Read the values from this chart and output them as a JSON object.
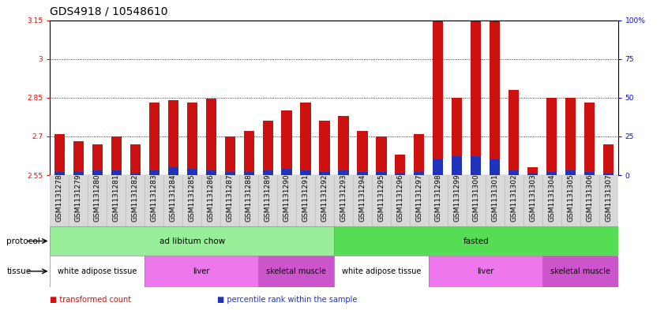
{
  "title": "GDS4918 / 10548610",
  "samples": [
    "GSM1131278",
    "GSM1131279",
    "GSM1131280",
    "GSM1131281",
    "GSM1131282",
    "GSM1131283",
    "GSM1131284",
    "GSM1131285",
    "GSM1131286",
    "GSM1131287",
    "GSM1131288",
    "GSM1131289",
    "GSM1131290",
    "GSM1131291",
    "GSM1131292",
    "GSM1131293",
    "GSM1131294",
    "GSM1131295",
    "GSM1131296",
    "GSM1131297",
    "GSM1131298",
    "GSM1131299",
    "GSM1131300",
    "GSM1131301",
    "GSM1131302",
    "GSM1131303",
    "GSM1131304",
    "GSM1131305",
    "GSM1131306",
    "GSM1131307"
  ],
  "red_values": [
    2.71,
    2.68,
    2.67,
    2.7,
    2.67,
    2.83,
    2.84,
    2.83,
    2.845,
    2.7,
    2.72,
    2.76,
    2.8,
    2.83,
    2.76,
    2.78,
    2.72,
    2.7,
    2.63,
    2.71,
    3.22,
    2.85,
    3.38,
    3.37,
    2.88,
    2.58,
    2.85,
    2.85,
    2.83,
    2.67
  ],
  "blue_values": [
    2,
    2,
    3,
    3,
    1,
    3,
    5,
    4,
    3,
    2,
    2,
    3,
    4,
    3,
    2,
    3,
    2,
    2,
    1,
    2,
    10,
    12,
    12,
    10,
    3,
    1,
    2,
    3,
    2,
    1
  ],
  "ymin": 2.55,
  "ymax": 3.15,
  "yticks": [
    2.55,
    2.7,
    2.85,
    3.0,
    3.15
  ],
  "ytick_labels": [
    "2.55",
    "2.7",
    "2.85",
    "3",
    "3.15"
  ],
  "grid_lines": [
    2.7,
    2.85,
    3.0
  ],
  "right_yticks": [
    0,
    25,
    50,
    75,
    100
  ],
  "right_ytick_labels": [
    "0",
    "25",
    "50",
    "75",
    "100%"
  ],
  "bar_color": "#cc1111",
  "blue_bar_color": "#2233bb",
  "protocol_groups": [
    {
      "label": "ad libitum chow",
      "start": 0,
      "end": 15,
      "color": "#99ee99"
    },
    {
      "label": "fasted",
      "start": 15,
      "end": 30,
      "color": "#55dd55"
    }
  ],
  "tissue_groups": [
    {
      "label": "white adipose tissue",
      "start": 0,
      "end": 5,
      "color": "#ffffff"
    },
    {
      "label": "liver",
      "start": 5,
      "end": 11,
      "color": "#ee77ee"
    },
    {
      "label": "skeletal muscle",
      "start": 11,
      "end": 15,
      "color": "#cc55cc"
    },
    {
      "label": "white adipose tissue",
      "start": 15,
      "end": 20,
      "color": "#ffffff"
    },
    {
      "label": "liver",
      "start": 20,
      "end": 26,
      "color": "#ee77ee"
    },
    {
      "label": "skeletal muscle",
      "start": 26,
      "end": 30,
      "color": "#cc55cc"
    }
  ],
  "legend_items": [
    {
      "label": "transformed count",
      "color": "#cc1111"
    },
    {
      "label": "percentile rank within the sample",
      "color": "#2233bb"
    }
  ],
  "title_fontsize": 10,
  "tick_fontsize": 6.5,
  "label_fontsize": 8,
  "xtick_bg": "#d8d8d8"
}
